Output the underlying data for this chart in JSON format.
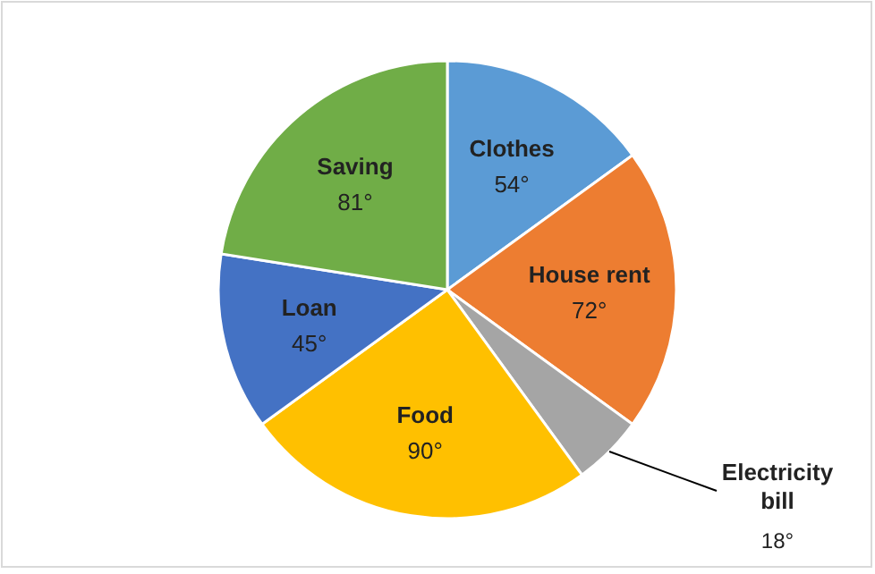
{
  "chart_data": {
    "type": "pie",
    "categories": [
      "Clothes",
      "House rent",
      "Electricity bill",
      "Food",
      "Loan",
      "Saving"
    ],
    "values": [
      54,
      72,
      18,
      90,
      45,
      81
    ],
    "value_labels": [
      "54°",
      "72°",
      "18°",
      "90°",
      "45°",
      "81°"
    ],
    "colors": [
      "#5b9bd5",
      "#ed7d31",
      "#a5a5a5",
      "#ffc000",
      "#4472c4",
      "#70ad47"
    ]
  }
}
